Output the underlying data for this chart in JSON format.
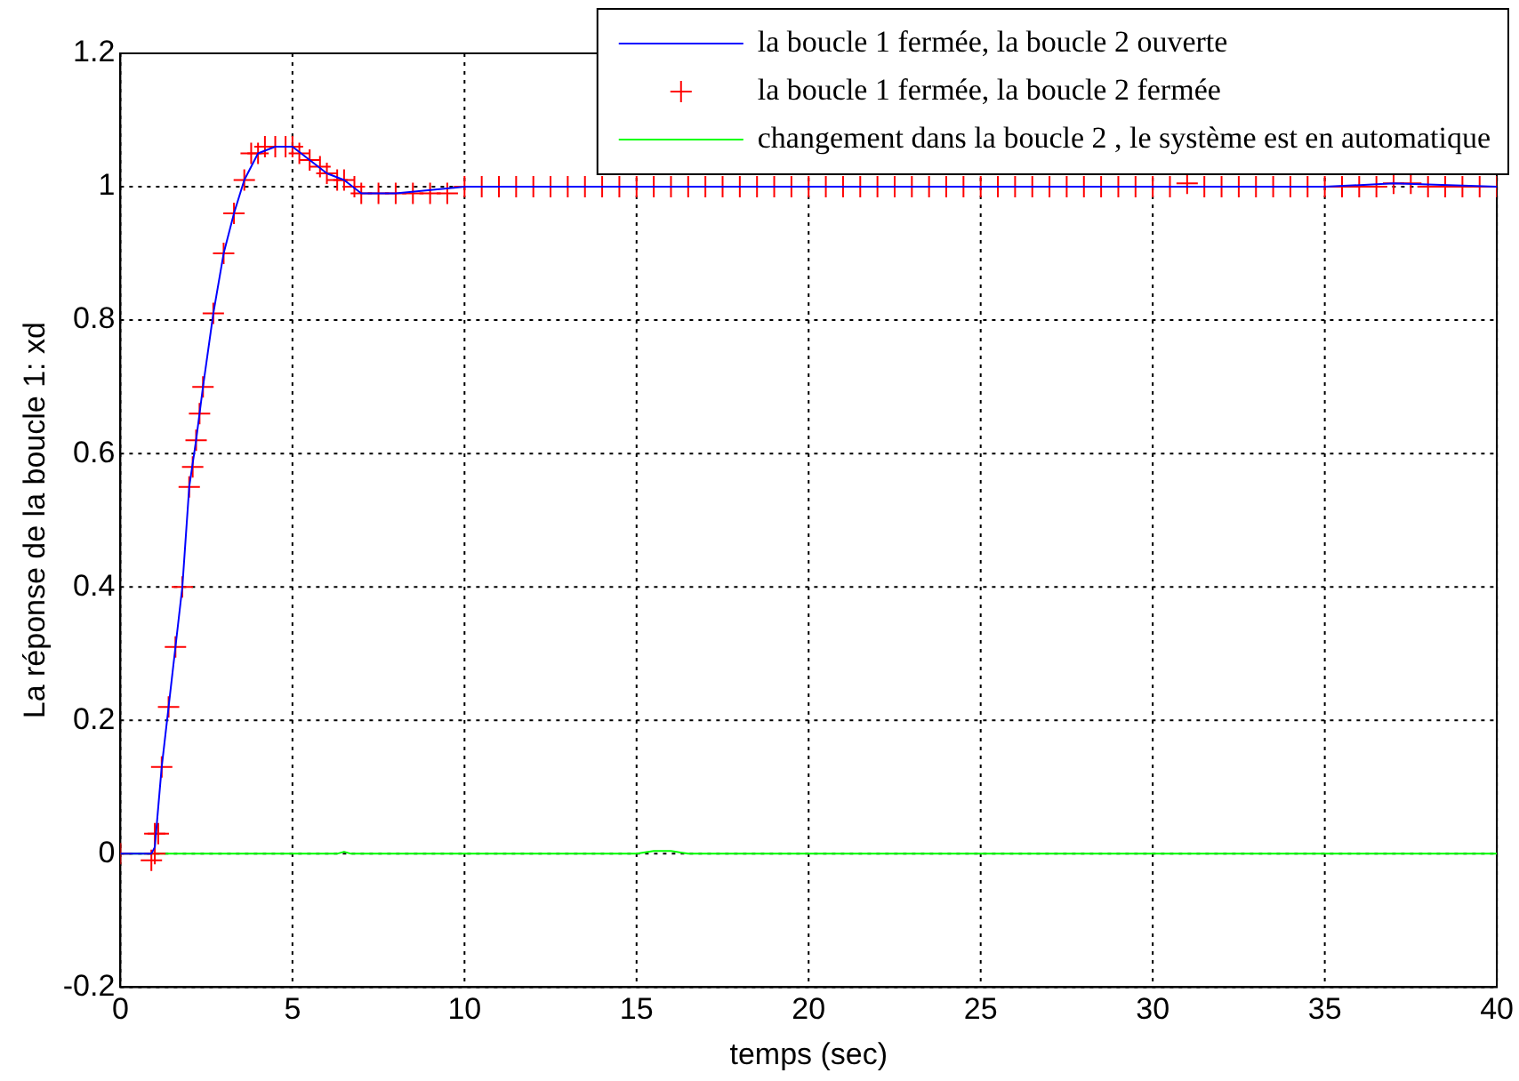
{
  "chart_data": {
    "type": "line",
    "xlabel": "temps (sec)",
    "ylabel": "La réponse de la boucle 1: xd",
    "xlim": [
      0,
      40
    ],
    "ylim": [
      -0.2,
      1.2
    ],
    "xticks": [
      0,
      5,
      10,
      15,
      20,
      25,
      30,
      35,
      40
    ],
    "yticks": [
      -0.2,
      0,
      0.2,
      0.4,
      0.6,
      0.8,
      1,
      1.2
    ],
    "grid": true,
    "legend": "top right",
    "series": [
      {
        "name": "la boucle 1 fermée, la boucle 2 ouverte",
        "color": "#0000ff",
        "marker": "none",
        "x": [
          0,
          0.9,
          1.0,
          1.2,
          1.4,
          1.6,
          1.8,
          2.0,
          2.2,
          2.4,
          2.7,
          3.0,
          3.3,
          3.6,
          4.0,
          4.5,
          5.0,
          5.5,
          6.0,
          6.5,
          7.0,
          8,
          10,
          15,
          20,
          25,
          30,
          35,
          37,
          40
        ],
        "values": [
          0,
          0,
          0.01,
          0.13,
          0.22,
          0.31,
          0.4,
          0.55,
          0.62,
          0.7,
          0.81,
          0.9,
          0.96,
          1.01,
          1.05,
          1.06,
          1.06,
          1.04,
          1.02,
          1.01,
          0.99,
          0.99,
          1.0,
          1.0,
          1.0,
          1.0,
          1.0,
          1.0,
          1.005,
          1.0
        ]
      },
      {
        "name": "la boucle 1 fermée, la boucle 2 fermée",
        "color": "#ff0000",
        "type": "scatter",
        "marker": "cross",
        "x": [
          0,
          0.9,
          1.0,
          1.0,
          1.1,
          1.2,
          1.4,
          1.6,
          1.8,
          2.0,
          2.1,
          2.2,
          2.3,
          2.4,
          2.7,
          3.0,
          3.3,
          3.6,
          3.8,
          4.0,
          4.2,
          4.5,
          4.8,
          5.0,
          5.2,
          5.5,
          5.8,
          6.0,
          6.3,
          6.5,
          6.8,
          7.0,
          7.5,
          8,
          8.5,
          9,
          9.5,
          10,
          10.5,
          11,
          11.5,
          12,
          12.5,
          13,
          13.5,
          14,
          14.5,
          15,
          15.5,
          16,
          16.5,
          17,
          17.5,
          18,
          18.5,
          19,
          19.5,
          20,
          20.5,
          21,
          21.5,
          22,
          22.5,
          23,
          23.5,
          24,
          24.5,
          25,
          25.5,
          26,
          26.5,
          27,
          27.5,
          28,
          28.5,
          29,
          29.5,
          30,
          30.5,
          31,
          31.5,
          32,
          32.5,
          33,
          33.5,
          34,
          34.5,
          35,
          35.5,
          36,
          36.5,
          37,
          37.5,
          38,
          38.5,
          39,
          39.5,
          40
        ],
        "values": [
          0,
          -0.01,
          0.0,
          0.03,
          0.03,
          0.13,
          0.22,
          0.31,
          0.4,
          0.55,
          0.58,
          0.62,
          0.66,
          0.7,
          0.81,
          0.9,
          0.96,
          1.01,
          1.05,
          1.05,
          1.06,
          1.06,
          1.06,
          1.06,
          1.05,
          1.04,
          1.03,
          1.02,
          1.01,
          1.01,
          1.0,
          0.99,
          0.99,
          0.99,
          0.99,
          0.99,
          0.99,
          1.0,
          1.0,
          1.0,
          1.0,
          1.0,
          1.0,
          1.0,
          1.0,
          1.0,
          1.0,
          1.0,
          1.0,
          1.0,
          1.0,
          1.0,
          1.0,
          1.0,
          1.0,
          1.0,
          1.0,
          1.0,
          1.0,
          1.0,
          1.0,
          1.0,
          1.0,
          1.0,
          1.0,
          1.0,
          1.0,
          1.0,
          1.0,
          1.0,
          1.0,
          1.0,
          1.0,
          1.0,
          1.0,
          1.0,
          1.0,
          1.0,
          1.0,
          1.005,
          1.0,
          1.0,
          1.0,
          1.0,
          1.0,
          1.0,
          1.0,
          1.0,
          1.0,
          1.0,
          1.0,
          1.005,
          1.005,
          1.0,
          1.0,
          1.0,
          1.0,
          1.0
        ]
      },
      {
        "name": "changement dans la boucle 2 , le système est en automatique",
        "color": "#00ff00",
        "marker": "none",
        "x": [
          0,
          6.3,
          6.5,
          6.7,
          15,
          15.5,
          16,
          16.5,
          40
        ],
        "values": [
          0,
          0,
          0.003,
          0,
          0,
          0.004,
          0.004,
          0,
          0
        ]
      }
    ]
  }
}
